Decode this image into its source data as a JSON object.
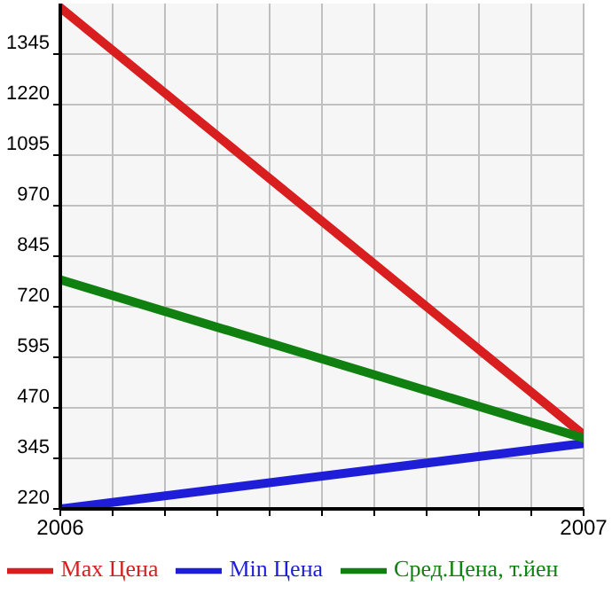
{
  "chart_data": {
    "type": "line",
    "x": [
      2006,
      2007
    ],
    "series": [
      {
        "name": "Max Цена",
        "color": "#d81e1e",
        "values": [
          1460,
          403
        ]
      },
      {
        "name": "Min Цена",
        "color": "#1e1ed8",
        "values": [
          220,
          382
        ]
      },
      {
        "name": "Сред.Цена, т.йен",
        "color": "#108010",
        "values": [
          787,
          395
        ]
      }
    ],
    "xlim": [
      2006,
      2007
    ],
    "xticks": [
      2006,
      {
        "value": 2006.1,
        "label": null
      },
      {
        "value": 2006.2,
        "label": null
      },
      {
        "value": 2006.3,
        "label": null
      },
      {
        "value": 2006.4,
        "label": null
      },
      {
        "value": 2006.5,
        "label": null
      },
      {
        "value": 2006.6,
        "label": null
      },
      {
        "value": 2006.7,
        "label": null
      },
      {
        "value": 2006.8,
        "label": null
      },
      {
        "value": 2006.9,
        "label": null
      },
      2007
    ],
    "ylim": [
      220,
      1470
    ],
    "yticks": [
      220,
      345,
      470,
      595,
      720,
      845,
      970,
      1095,
      1220,
      1345
    ],
    "grid": true,
    "legend": "bottom",
    "marker": "none",
    "line_style": "solid"
  }
}
